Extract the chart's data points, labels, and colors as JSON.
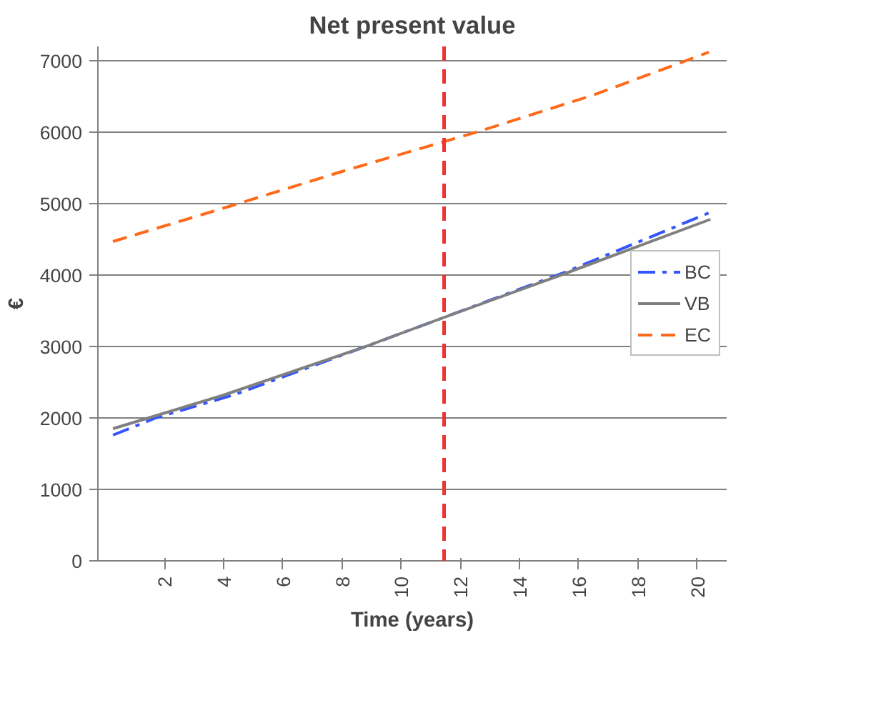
{
  "chart_data": {
    "type": "line",
    "title": "Net present value",
    "xlabel": "Time (years)",
    "ylabel": "€",
    "xlim": [
      -0.25,
      21
    ],
    "xticks": [
      2,
      4,
      6,
      8,
      10,
      12,
      14,
      16,
      18,
      20
    ],
    "ylim": [
      0,
      7200
    ],
    "yticks": [
      0,
      1000,
      2000,
      3000,
      4000,
      5000,
      6000,
      7000
    ],
    "grid": "y",
    "legend": "right",
    "marker": "none",
    "series": [
      {
        "name": "BC",
        "color": "#3355ff",
        "line_style": "dashdot",
        "x": [
          0.26,
          1.7,
          4.4,
          8.8,
          11.4,
          15.6,
          20.4
        ],
        "values": [
          1760,
          2000,
          2330,
          3000,
          3400,
          4050,
          4870
        ]
      },
      {
        "name": "VB",
        "color": "#808080",
        "line_style": "solid",
        "x": [
          0.26,
          4,
          8.8,
          11.4,
          15.4,
          20.45
        ],
        "values": [
          1850,
          2320,
          3000,
          3400,
          4000,
          4780
        ]
      },
      {
        "name": "EC",
        "color": "#ff6a1a",
        "line_style": "dashed",
        "x": [
          0.26,
          4.5,
          8,
          12.54,
          16.5,
          20.4
        ],
        "values": [
          4470,
          5000,
          5450,
          6000,
          6520,
          7120
        ]
      }
    ],
    "ref_lines": [
      {
        "axis": "x",
        "value": 11.45,
        "color": "#ee3333",
        "line_style": "dashed"
      }
    ]
  }
}
